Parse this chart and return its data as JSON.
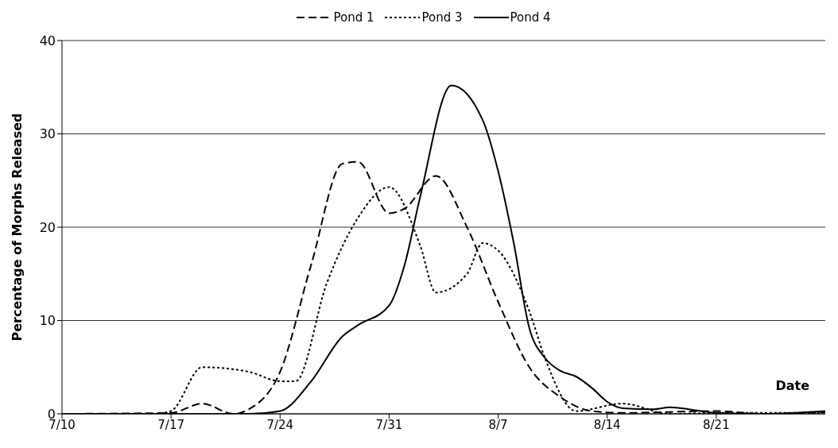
{
  "chart_data": {
    "type": "line",
    "ylabel": "Percentage of Morphs Released",
    "xlabel": "Date",
    "xlim": [
      "--07-10",
      "--08-28"
    ],
    "xticks": [
      {
        "value": "--07-10",
        "label": "7/10"
      },
      {
        "value": "--07-17",
        "label": "7/17"
      },
      {
        "value": "--07-24",
        "label": "7/24"
      },
      {
        "value": "--07-31",
        "label": "7/31"
      },
      {
        "value": "--08-07",
        "label": "8/7"
      },
      {
        "value": "--08-14",
        "label": "8/14"
      },
      {
        "value": "--08-21",
        "label": "8/21"
      }
    ],
    "ylim": [
      0,
      40
    ],
    "yticks": [
      0,
      10,
      20,
      30,
      40
    ],
    "grid": "y",
    "legend": "top",
    "marker": "none",
    "series": [
      {
        "name": "Pond 1",
        "color": "#000000",
        "line_style": "dashed",
        "x": [
          "--07-10",
          "--07-17",
          "--07-19",
          "--07-21",
          "--07-22",
          "--07-24",
          "--07-26",
          "--07-28",
          "--07-29",
          "--07-31",
          "--08-01",
          "--08-03",
          "--08-05",
          "--08-07",
          "--08-09",
          "--08-11",
          "--08-13",
          "--08-15",
          "--08-21",
          "--08-24",
          "--08-28"
        ],
        "values": [
          0,
          0.1,
          1.1,
          0,
          0.5,
          4.5,
          16,
          26.8,
          27,
          21.5,
          22,
          25.5,
          20,
          12,
          5,
          1.8,
          0.3,
          0.1,
          0.3,
          0,
          0.2
        ]
      },
      {
        "name": "Pond 3",
        "color": "#000000",
        "line_style": "dotted",
        "x": [
          "--07-16",
          "--07-17",
          "--07-19",
          "--07-22",
          "--07-24",
          "--07-25",
          "--07-27",
          "--07-29",
          "--07-31",
          "--08-02",
          "--08-03",
          "--08-05",
          "--08-06",
          "--08-07",
          "--08-09",
          "--08-10",
          "--08-12",
          "--08-15",
          "--08-18",
          "--08-21",
          "--08-28"
        ],
        "values": [
          0,
          0.3,
          5,
          4.5,
          3.5,
          3.5,
          14,
          21,
          24.3,
          18,
          13,
          15,
          18.3,
          17.5,
          11,
          6,
          0.3,
          1.1,
          0,
          0.1,
          0.1
        ]
      },
      {
        "name": "Pond 4",
        "color": "#000000",
        "line_style": "solid",
        "x": [
          "--07-10",
          "--07-22",
          "--07-24",
          "--07-26",
          "--07-28",
          "--07-29",
          "--07-31",
          "--08-01",
          "--08-02",
          "--08-04",
          "--08-06",
          "--08-07",
          "--08-08",
          "--08-09",
          "--08-10",
          "--08-11",
          "--08-12",
          "--08-13",
          "--08-14",
          "--08-15",
          "--08-17",
          "--08-18",
          "--08-20",
          "--08-21",
          "--08-24",
          "--08-28"
        ],
        "values": [
          0,
          0,
          0.3,
          3.5,
          8.3,
          9.5,
          11.6,
          16,
          23.3,
          35.2,
          31.5,
          26,
          18.3,
          9.2,
          6,
          4.6,
          4,
          2.8,
          1.3,
          0.6,
          0.5,
          0.7,
          0.3,
          0.1,
          0,
          0.3
        ]
      }
    ]
  }
}
